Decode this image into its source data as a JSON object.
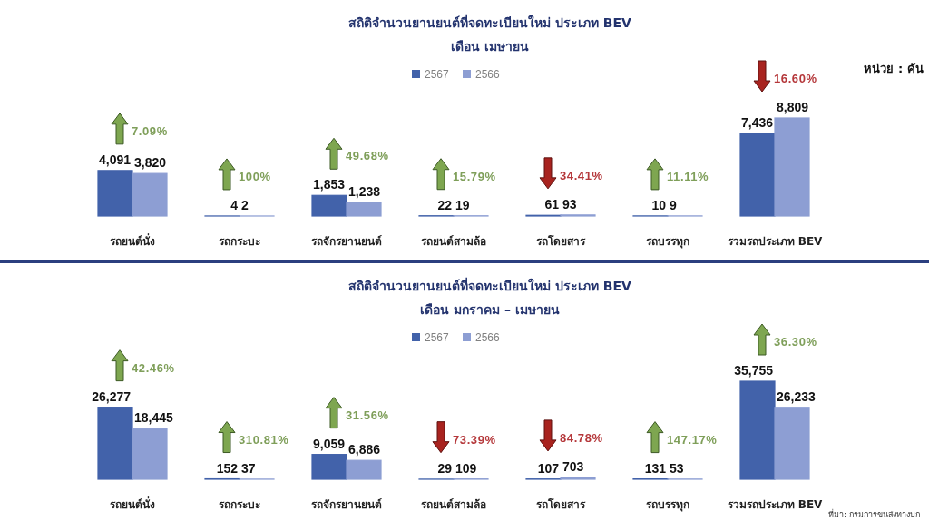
{
  "chart_data": [
    {
      "type": "bar",
      "title": "สถิติจำนวนยานยนต์ที่จดทะเบียนใหม่ ประเภท BEV",
      "subtitle": "เดือน เมษายน",
      "categories": [
        "รถยนต์นั่ง",
        "รถกระบะ",
        "รถจักรยานยนต์",
        "รถยนต์สามล้อ",
        "รถโดยสาร",
        "รถบรรทุก",
        "รวมรถประเภท BEV"
      ],
      "series": [
        {
          "name": "2567",
          "color": "#4262aa",
          "values": [
            4091,
            4,
            1853,
            22,
            61,
            10,
            7436
          ],
          "value_labels": [
            "4,091",
            "4",
            "1,853",
            "22",
            "61",
            "10",
            "7,436"
          ]
        },
        {
          "name": "2566",
          "color": "#8d9ed3",
          "values": [
            3820,
            2,
            1238,
            19,
            93,
            9,
            8809
          ],
          "value_labels": [
            "3,820",
            "2",
            "1,238",
            "19",
            "93",
            "9",
            "8,809"
          ]
        }
      ],
      "legend": "top",
      "annotations": [
        "7.09%",
        "100%",
        "49.68%",
        "15.79%",
        "34.41%",
        "11.11%",
        "16.60%",
        "หน่วย : คัน"
      ]
    },
    {
      "type": "bar",
      "title": "สถิติจำนวนยานยนต์ที่จดทะเบียนใหม่ ประเภท BEV",
      "subtitle": "เดือน มกราคม – เมษายน",
      "categories": [
        "รถยนต์นั่ง",
        "รถกระบะ",
        "รถจักรยานยนต์",
        "รถยนต์สามล้อ",
        "รถโดยสาร",
        "รถบรรทุก",
        "รวมรถประเภท BEV"
      ],
      "series": [
        {
          "name": "2567",
          "color": "#4262aa",
          "values": [
            26277,
            152,
            9059,
            29,
            107,
            131,
            35755
          ],
          "value_labels": [
            "26,277",
            "152",
            "9,059",
            "29",
            "107",
            "131",
            "35,755"
          ]
        },
        {
          "name": "2566",
          "color": "#8d9ed3",
          "values": [
            18445,
            37,
            6886,
            109,
            703,
            53,
            26233
          ],
          "value_labels": [
            "18,445",
            "37",
            "6,886",
            "109",
            "703",
            "53",
            "26,233"
          ]
        }
      ],
      "legend": "top",
      "annotations": [
        "42.46%",
        "310.81%",
        "31.56%",
        "73.39%",
        "84.78%",
        "147.17%",
        "36.30%",
        "ที่มา: กรมการขนส่งทางบก"
      ]
    }
  ]
}
